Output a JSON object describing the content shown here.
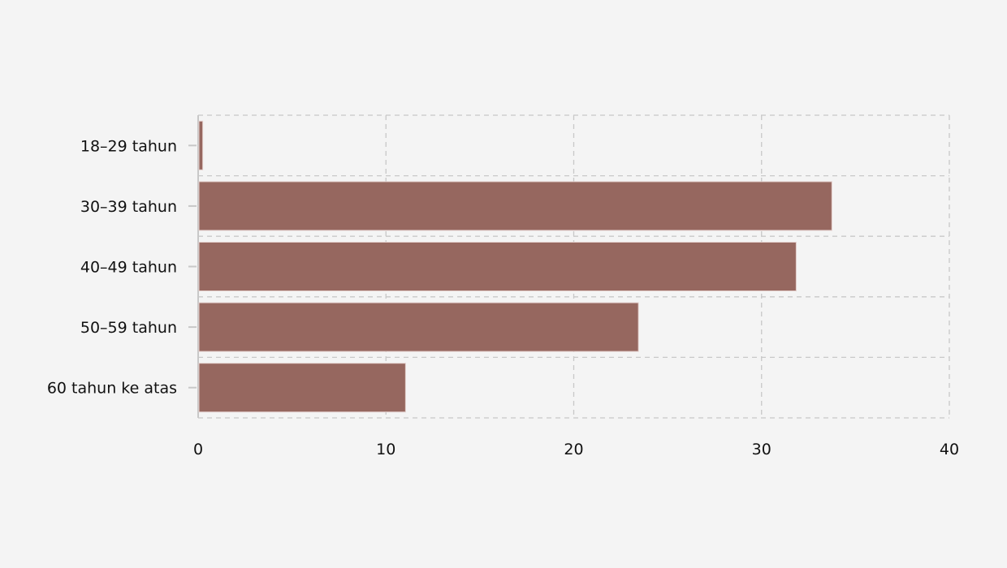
{
  "chart_data": {
    "type": "bar",
    "orientation": "horizontal",
    "categories": [
      "18–29 tahun",
      "30–39 tahun",
      "40–49 tahun",
      "50–59 tahun",
      "60 tahun ke atas"
    ],
    "values": [
      0.2,
      33.7,
      31.8,
      23.4,
      11.0
    ],
    "title": "",
    "xlabel": "",
    "ylabel": "",
    "xlim": [
      0,
      40
    ],
    "xticks": [
      "0",
      "10",
      "20",
      "30",
      "40"
    ],
    "grid": true,
    "bar_color": "#96675f",
    "background": "#f4f4f4"
  }
}
